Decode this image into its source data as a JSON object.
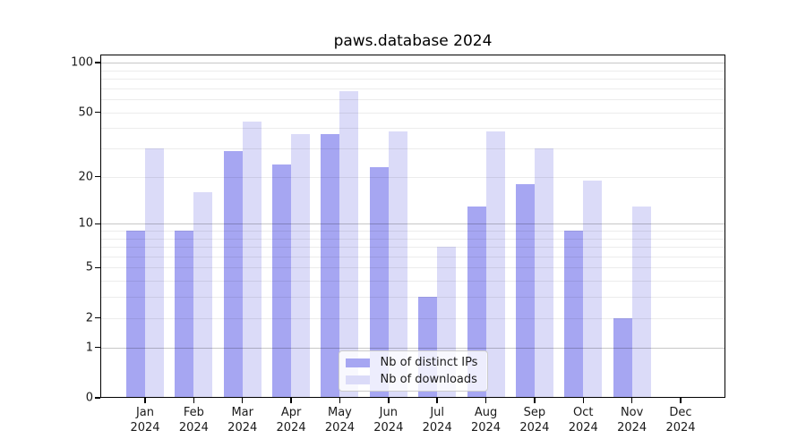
{
  "title": "paws.database 2024",
  "chart_data": {
    "type": "bar",
    "title": "paws.database 2024",
    "categories": [
      "Jan",
      "Feb",
      "Mar",
      "Apr",
      "May",
      "Jun",
      "Jul",
      "Aug",
      "Sep",
      "Oct",
      "Nov",
      "Dec"
    ],
    "category_year": "2024",
    "series": [
      {
        "name": "Nb of distinct IPs",
        "color": "#a6a6f2",
        "values": [
          9,
          9,
          29,
          24,
          37,
          23,
          3,
          13,
          18,
          9,
          2,
          0
        ]
      },
      {
        "name": "Nb of downloads",
        "color": "#dbdbf8",
        "values": [
          30,
          16,
          44,
          37,
          67,
          38,
          7,
          38,
          30,
          19,
          13,
          0
        ]
      }
    ],
    "xlabel": "",
    "ylabel": "",
    "y_scale": "symlog-log1p",
    "y_ticks": [
      100,
      50,
      20,
      10,
      5,
      2,
      1,
      0
    ],
    "y_major_gridlines": [
      1,
      10,
      100
    ],
    "y_minor_gridlines": [
      2,
      3,
      4,
      5,
      6,
      7,
      8,
      9,
      20,
      30,
      40,
      50,
      60,
      70,
      80,
      90
    ],
    "ylim": [
      0,
      112
    ],
    "grid": true,
    "legend_position": "lower center"
  },
  "colors": {
    "background": "#ffffff",
    "axis": "#000000",
    "text": "#1a1a1a",
    "legend_bg": "rgba(255,255,255,0.8)",
    "legend_border": "#cccccc"
  }
}
